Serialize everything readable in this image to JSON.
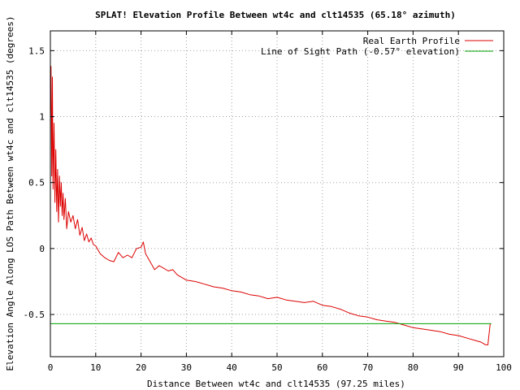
{
  "chart_data": {
    "type": "line",
    "title": "SPLAT! Elevation Profile Between wt4c and clt14535 (65.18° azimuth)",
    "xlabel": "Distance Between wt4c and clt14535 (97.25 miles)",
    "ylabel": "Elevation Angle Along LOS Path Between wt4c and clt14535 (degrees)",
    "xlim": [
      0,
      100
    ],
    "ylim": [
      -0.82,
      1.65
    ],
    "x_ticks": [
      0,
      10,
      20,
      30,
      40,
      50,
      60,
      70,
      80,
      90,
      100
    ],
    "x_tick_labels": [
      "0",
      "10",
      "20",
      "30",
      "40",
      "50",
      "60",
      "70",
      "80",
      "90",
      "100"
    ],
    "y_ticks": [
      -0.5,
      0,
      0.5,
      1,
      1.5
    ],
    "y_tick_labels": [
      "-0.5",
      "0",
      "0.5",
      "1",
      "1.5"
    ],
    "grid": true,
    "legend_position": "top-right",
    "series": [
      {
        "name": "Real Earth Profile",
        "color": "#dd0000",
        "x": [
          0,
          0.15,
          0.3,
          0.45,
          0.6,
          0.8,
          1.0,
          1.2,
          1.4,
          1.6,
          1.8,
          2.0,
          2.2,
          2.4,
          2.6,
          2.8,
          3.0,
          3.3,
          3.6,
          4.0,
          4.5,
          5.0,
          5.5,
          6.0,
          6.5,
          7.0,
          7.5,
          8.0,
          8.5,
          9.0,
          9.5,
          10.0,
          11.0,
          12.0,
          13.0,
          14.0,
          15.0,
          16.0,
          17.0,
          18.0,
          19.0,
          20.0,
          20.5,
          21.0,
          22.0,
          23.0,
          24.0,
          25.0,
          26.0,
          27.0,
          28.0,
          29.0,
          30.0,
          32.0,
          34.0,
          36.0,
          38.0,
          40.0,
          42.0,
          44.0,
          46.0,
          48.0,
          50.0,
          52.0,
          54.0,
          56.0,
          58.0,
          60.0,
          62.0,
          64.0,
          66.0,
          68.0,
          70.0,
          72.0,
          74.0,
          76.0,
          78.0,
          80.0,
          82.0,
          84.0,
          86.0,
          88.0,
          90.0,
          92.0,
          94.0,
          95.0,
          96.0,
          96.5,
          97.0
        ],
        "values": [
          1.0,
          1.38,
          0.55,
          1.3,
          0.45,
          0.95,
          0.35,
          0.75,
          0.28,
          0.6,
          0.2,
          0.55,
          0.32,
          0.5,
          0.25,
          0.42,
          0.22,
          0.38,
          0.15,
          0.28,
          0.2,
          0.25,
          0.15,
          0.22,
          0.1,
          0.16,
          0.06,
          0.11,
          0.05,
          0.08,
          0.03,
          0.02,
          -0.04,
          -0.07,
          -0.09,
          -0.1,
          -0.03,
          -0.07,
          -0.05,
          -0.07,
          0.0,
          0.01,
          0.05,
          -0.04,
          -0.1,
          -0.16,
          -0.13,
          -0.15,
          -0.17,
          -0.16,
          -0.2,
          -0.22,
          -0.24,
          -0.25,
          -0.27,
          -0.29,
          -0.3,
          -0.32,
          -0.33,
          -0.35,
          -0.36,
          -0.38,
          -0.37,
          -0.39,
          -0.4,
          -0.41,
          -0.4,
          -0.43,
          -0.44,
          -0.46,
          -0.49,
          -0.51,
          -0.52,
          -0.54,
          -0.55,
          -0.56,
          -0.58,
          -0.6,
          -0.61,
          -0.62,
          -0.63,
          -0.65,
          -0.66,
          -0.68,
          -0.7,
          -0.71,
          -0.73,
          -0.73,
          -0.57
        ]
      },
      {
        "name": "Line of Sight Path (-0.57° elevation)",
        "color": "#00a000",
        "x": [
          0,
          97.25
        ],
        "values": [
          -0.57,
          -0.57
        ]
      }
    ]
  }
}
